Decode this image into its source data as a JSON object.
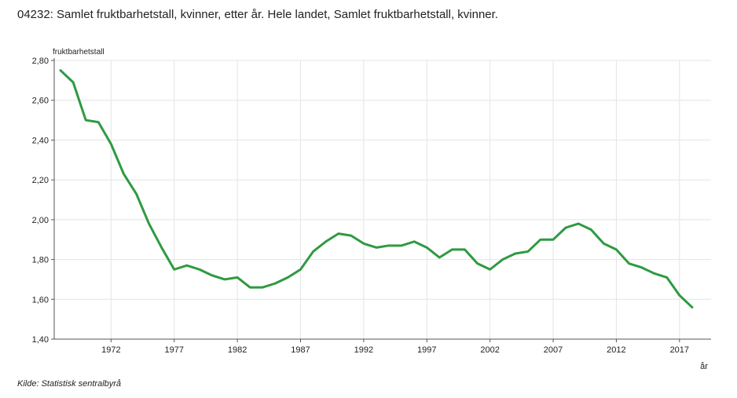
{
  "chart_data": {
    "type": "line",
    "title": "04232: Samlet fruktbarhetstall, kvinner, etter år. Hele landet, Samlet fruktbarhetstall, kvinner.",
    "ylabel": "fruktbarhetstall",
    "xlabel": "år",
    "ylim": [
      1.4,
      2.8
    ],
    "xlim": [
      1967.5,
      2019.5
    ],
    "y_ticks": [
      1.4,
      1.6,
      1.8,
      2.0,
      2.2,
      2.4,
      2.6,
      2.8
    ],
    "y_tick_labels": [
      "1,40",
      "1,60",
      "1,80",
      "2,00",
      "2,20",
      "2,40",
      "2,60",
      "2,80"
    ],
    "x_ticks": [
      1972,
      1977,
      1982,
      1987,
      1992,
      1997,
      2002,
      2007,
      2012,
      2017
    ],
    "x_tick_labels": [
      "1972",
      "1977",
      "1982",
      "1987",
      "1992",
      "1997",
      "2002",
      "2007",
      "2012",
      "2017"
    ],
    "grid": true,
    "line_color": "#2e9a41",
    "series": [
      {
        "x": [
          1968,
          1969,
          1970,
          1971,
          1972,
          1973,
          1974,
          1975,
          1976,
          1977,
          1978,
          1979,
          1980,
          1981,
          1982,
          1983,
          1984,
          1985,
          1986,
          1987,
          1988,
          1989,
          1990,
          1991,
          1992,
          1993,
          1994,
          1995,
          1996,
          1997,
          1998,
          1999,
          2000,
          2001,
          2002,
          2003,
          2004,
          2005,
          2006,
          2007,
          2008,
          2009,
          2010,
          2011,
          2012,
          2013,
          2014,
          2015,
          2016,
          2017,
          2018
        ],
        "values": [
          2.75,
          2.69,
          2.5,
          2.49,
          2.38,
          2.23,
          2.13,
          1.98,
          1.86,
          1.75,
          1.77,
          1.75,
          1.72,
          1.7,
          1.71,
          1.66,
          1.66,
          1.68,
          1.71,
          1.75,
          1.84,
          1.89,
          1.93,
          1.92,
          1.88,
          1.86,
          1.87,
          1.87,
          1.89,
          1.86,
          1.81,
          1.85,
          1.85,
          1.78,
          1.75,
          1.8,
          1.83,
          1.84,
          1.9,
          1.9,
          1.96,
          1.98,
          1.95,
          1.88,
          1.85,
          1.78,
          1.76,
          1.73,
          1.71,
          1.62,
          1.56
        ]
      }
    ]
  },
  "source_text": "Kilde:  Statistisk sentralbyrå"
}
